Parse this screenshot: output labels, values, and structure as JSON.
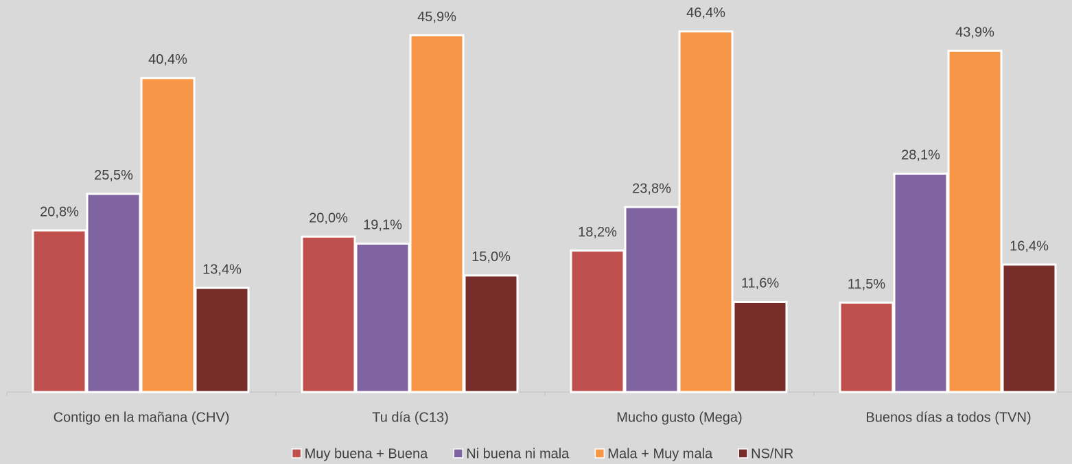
{
  "chart_data": {
    "type": "bar",
    "categories": [
      "Contigo en la mañana (CHV)",
      "Tu día (C13)",
      "Mucho gusto (Mega)",
      "Buenos días a todos (TVN)"
    ],
    "series": [
      {
        "name": "Muy buena + Buena",
        "color": "#c0504d",
        "values": [
          20.8,
          20.0,
          18.2,
          11.5
        ],
        "value_labels": [
          "20,8%",
          "20,0%",
          "18,2%",
          "11,5%"
        ]
      },
      {
        "name": "Ni buena ni mala",
        "color": "#8064a2",
        "values": [
          25.5,
          19.1,
          23.8,
          28.1
        ],
        "value_labels": [
          "25,5%",
          "19,1%",
          "23,8%",
          "28,1%"
        ]
      },
      {
        "name": "Mala + Muy mala",
        "color": "#f79646",
        "values": [
          40.4,
          45.9,
          46.4,
          43.9
        ],
        "value_labels": [
          "40,4%",
          "45,9%",
          "46,4%",
          "43,9%"
        ]
      },
      {
        "name": "NS/NR",
        "color": "#772c2a",
        "values": [
          13.4,
          15.0,
          11.6,
          16.4
        ],
        "value_labels": [
          "13,4%",
          "15,0%",
          "11,6%",
          "16,4%"
        ]
      }
    ],
    "ylim": [
      0,
      50
    ],
    "legend": "bottom"
  }
}
